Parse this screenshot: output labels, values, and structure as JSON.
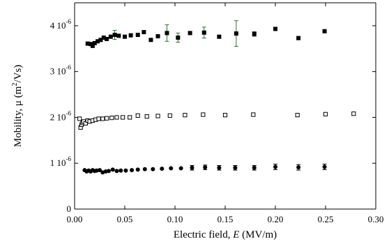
{
  "chart_data": {
    "type": "scatter",
    "xlabel_prefix": "Electric field, ",
    "xlabel_var": "E",
    "xlabel_unit": " (MV/m)",
    "ylabel_prefix": "Mobility, μ (m",
    "ylabel_sup": "2",
    "ylabel_suffix": "/Vs)",
    "xlim": [
      0,
      0.3
    ],
    "ylim": [
      0,
      4.5e-06
    ],
    "x_ticks": [
      {
        "value": 0.0,
        "label": "0.00"
      },
      {
        "value": 0.05,
        "label": "0.05"
      },
      {
        "value": 0.1,
        "label": "0.10"
      },
      {
        "value": 0.15,
        "label": "0.15"
      },
      {
        "value": 0.2,
        "label": "0.20"
      },
      {
        "value": 0.25,
        "label": "0.25"
      },
      {
        "value": 0.3,
        "label": "0.30"
      }
    ],
    "y_ticks": [
      {
        "value": 0,
        "mantissa": "0",
        "exp": ""
      },
      {
        "value": 1e-06,
        "mantissa": "1 10",
        "exp": "-6"
      },
      {
        "value": 2e-06,
        "mantissa": "2 10",
        "exp": "-6"
      },
      {
        "value": 3e-06,
        "mantissa": "3 10",
        "exp": "-6"
      },
      {
        "value": 4e-06,
        "mantissa": "4 10",
        "exp": "-6"
      }
    ],
    "series": [
      {
        "marker": "filled-square",
        "color": "#000000",
        "error_color": "#2f6f2f",
        "points": [
          {
            "x": 0.013,
            "y": 3.61e-06
          },
          {
            "x": 0.016,
            "y": 3.6e-06
          },
          {
            "x": 0.018,
            "y": 3.56e-06
          },
          {
            "x": 0.02,
            "y": 3.62e-06
          },
          {
            "x": 0.023,
            "y": 3.66e-06
          },
          {
            "x": 0.026,
            "y": 3.69e-06
          },
          {
            "x": 0.029,
            "y": 3.74e-06
          },
          {
            "x": 0.032,
            "y": 3.71e-06
          },
          {
            "x": 0.036,
            "y": 3.76e-06
          },
          {
            "x": 0.04,
            "y": 3.8e-06,
            "err": 1e-07
          },
          {
            "x": 0.044,
            "y": 3.78e-06
          },
          {
            "x": 0.05,
            "y": 3.76e-06
          },
          {
            "x": 0.056,
            "y": 3.79e-06
          },
          {
            "x": 0.063,
            "y": 3.8e-06
          },
          {
            "x": 0.069,
            "y": 3.86e-06
          },
          {
            "x": 0.076,
            "y": 3.69e-06
          },
          {
            "x": 0.083,
            "y": 3.77e-06
          },
          {
            "x": 0.092,
            "y": 3.84e-06,
            "err": 1.8e-07
          },
          {
            "x": 0.103,
            "y": 3.74e-06,
            "err": 1e-07
          },
          {
            "x": 0.115,
            "y": 3.84e-06
          },
          {
            "x": 0.129,
            "y": 3.85e-06,
            "err": 1.2e-07
          },
          {
            "x": 0.144,
            "y": 3.76e-06
          },
          {
            "x": 0.161,
            "y": 3.83e-06,
            "err": 2.8e-07
          },
          {
            "x": 0.179,
            "y": 3.82e-06,
            "err": 5e-08
          },
          {
            "x": 0.2,
            "y": 3.93e-06
          },
          {
            "x": 0.223,
            "y": 3.73e-06
          },
          {
            "x": 0.249,
            "y": 3.88e-06
          }
        ]
      },
      {
        "marker": "open-square",
        "color": "#000000",
        "points": [
          {
            "x": 0.005,
            "y": 1.97e-06
          },
          {
            "x": 0.006,
            "y": 1.78e-06
          },
          {
            "x": 0.007,
            "y": 1.84e-06
          },
          {
            "x": 0.008,
            "y": 1.88e-06
          },
          {
            "x": 0.009,
            "y": 1.91e-06
          },
          {
            "x": 0.011,
            "y": 1.87e-06
          },
          {
            "x": 0.013,
            "y": 1.93e-06
          },
          {
            "x": 0.015,
            "y": 1.91e-06
          },
          {
            "x": 0.018,
            "y": 1.93e-06
          },
          {
            "x": 0.021,
            "y": 1.95e-06
          },
          {
            "x": 0.024,
            "y": 1.97e-06
          },
          {
            "x": 0.028,
            "y": 1.97e-06
          },
          {
            "x": 0.032,
            "y": 1.98e-06
          },
          {
            "x": 0.037,
            "y": 1.99e-06
          },
          {
            "x": 0.042,
            "y": 2e-06
          },
          {
            "x": 0.048,
            "y": 2e-06
          },
          {
            "x": 0.055,
            "y": 2e-06
          },
          {
            "x": 0.063,
            "y": 2.04e-06
          },
          {
            "x": 0.072,
            "y": 2.02e-06
          },
          {
            "x": 0.083,
            "y": 2.03e-06
          },
          {
            "x": 0.095,
            "y": 2.04e-06
          },
          {
            "x": 0.11,
            "y": 2.05e-06
          },
          {
            "x": 0.128,
            "y": 2.06e-06
          },
          {
            "x": 0.15,
            "y": 2.05e-06
          },
          {
            "x": 0.178,
            "y": 2.06e-06
          },
          {
            "x": 0.222,
            "y": 2.05e-06
          },
          {
            "x": 0.25,
            "y": 2.07e-06
          },
          {
            "x": 0.278,
            "y": 2.08e-06
          }
        ]
      },
      {
        "marker": "filled-circle",
        "color": "#000000",
        "error_color": "#000000",
        "points": [
          {
            "x": 0.01,
            "y": 8.5e-07
          },
          {
            "x": 0.012,
            "y": 8.2e-07
          },
          {
            "x": 0.014,
            "y": 8.4e-07
          },
          {
            "x": 0.016,
            "y": 8.2e-07
          },
          {
            "x": 0.018,
            "y": 8.5e-07
          },
          {
            "x": 0.02,
            "y": 8.3e-07
          },
          {
            "x": 0.022,
            "y": 8.4e-07
          },
          {
            "x": 0.025,
            "y": 8.5e-07
          },
          {
            "x": 0.028,
            "y": 8e-07
          },
          {
            "x": 0.031,
            "y": 8.2e-07
          },
          {
            "x": 0.034,
            "y": 8.3e-07
          },
          {
            "x": 0.038,
            "y": 8.6e-07
          },
          {
            "x": 0.042,
            "y": 8.3e-07
          },
          {
            "x": 0.046,
            "y": 8.4e-07
          },
          {
            "x": 0.051,
            "y": 8.4e-07
          },
          {
            "x": 0.057,
            "y": 8.5e-07
          },
          {
            "x": 0.063,
            "y": 8.6e-07
          },
          {
            "x": 0.07,
            "y": 8.7e-07
          },
          {
            "x": 0.078,
            "y": 8.7e-07
          },
          {
            "x": 0.087,
            "y": 8.8e-07
          },
          {
            "x": 0.096,
            "y": 8.9e-07
          },
          {
            "x": 0.106,
            "y": 8.9e-07
          },
          {
            "x": 0.117,
            "y": 9e-07,
            "err": 5e-08
          },
          {
            "x": 0.13,
            "y": 9.1e-07,
            "err": 5e-08
          },
          {
            "x": 0.144,
            "y": 9e-07,
            "err": 5e-08
          },
          {
            "x": 0.16,
            "y": 9e-07,
            "err": 5e-08
          },
          {
            "x": 0.179,
            "y": 9e-07,
            "err": 5e-08
          },
          {
            "x": 0.2,
            "y": 9.2e-07,
            "err": 6e-08
          },
          {
            "x": 0.223,
            "y": 9.1e-07,
            "err": 6e-08
          },
          {
            "x": 0.249,
            "y": 9.2e-07,
            "err": 6e-08
          }
        ]
      }
    ]
  }
}
